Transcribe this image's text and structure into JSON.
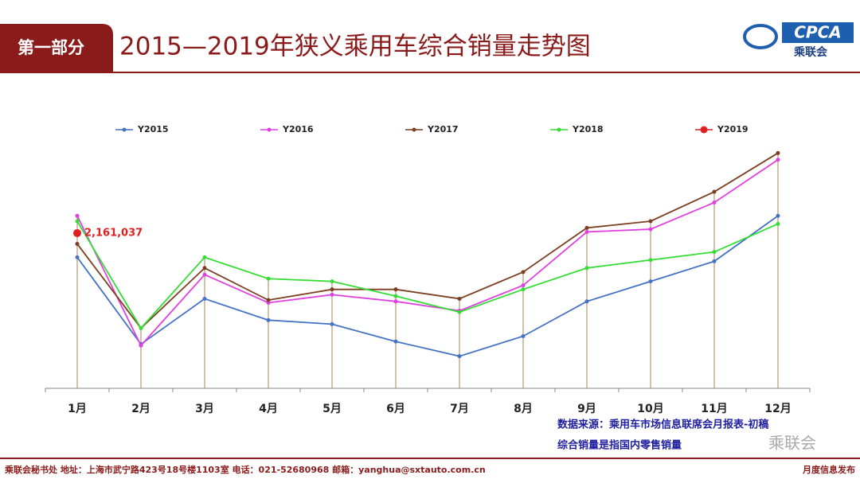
{
  "slide": {
    "section": "第一部分",
    "logo_text": "CPCA",
    "logo_sub": "乘联会",
    "source": "数据来源：乘用车市场信息联席会月报表-初稿",
    "note": "综合销量是指国内零售销量",
    "watermark": "乘联会",
    "footer_left": "乘联会秘书处  地址：上海市武宁路423号18号楼1103室  电话：021-52680968  邮箱：yanghua@sxtauto.com.cn",
    "footer_right": "月度信息发布"
  },
  "chart_data": {
    "type": "line",
    "title": "2015—2019年狭义乘用车综合销量走势图",
    "categories": [
      "1月",
      "2月",
      "3月",
      "4月",
      "5月",
      "6月",
      "7月",
      "8月",
      "9月",
      "10月",
      "11月",
      "12月"
    ],
    "ylim": [
      1000000,
      3000000
    ],
    "legend": "top",
    "series": [
      {
        "name": "Y2015",
        "color": "#4472c4",
        "values": [
          1980000,
          1330000,
          1670000,
          1510000,
          1480000,
          1350000,
          1240000,
          1390000,
          1650000,
          1800000,
          1950000,
          2290000
        ]
      },
      {
        "name": "Y2016",
        "color": "#e040e0",
        "values": [
          2290000,
          1320000,
          1850000,
          1640000,
          1700000,
          1650000,
          1580000,
          1770000,
          2170000,
          2190000,
          2390000,
          2710000
        ]
      },
      {
        "name": "Y2017",
        "color": "#7b3f1f",
        "values": [
          2080000,
          1450000,
          1900000,
          1660000,
          1740000,
          1740000,
          1670000,
          1870000,
          2200000,
          2250000,
          2470000,
          2760000
        ]
      },
      {
        "name": "Y2018",
        "color": "#33dd33",
        "values": [
          2250000,
          1450000,
          1980000,
          1820000,
          1800000,
          1690000,
          1570000,
          1740000,
          1900000,
          1960000,
          2020000,
          2230000
        ]
      },
      {
        "name": "Y2019",
        "color": "#e02020",
        "values": [
          2161037,
          null,
          null,
          null,
          null,
          null,
          null,
          null,
          null,
          null,
          null,
          null
        ],
        "value_labels": [
          "2,161,037",
          null,
          null,
          null,
          null,
          null,
          null,
          null,
          null,
          null,
          null,
          null
        ]
      }
    ]
  }
}
